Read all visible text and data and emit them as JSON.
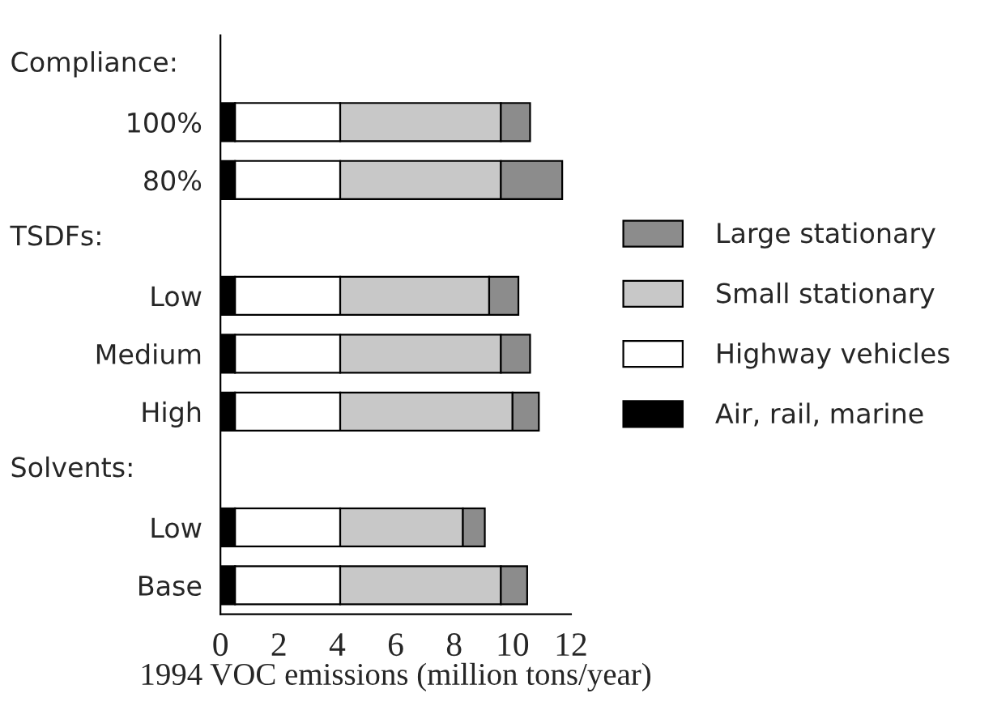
{
  "chart_data": {
    "type": "bar",
    "orientation": "horizontal",
    "stacked": true,
    "categories": [
      null,
      "100%",
      "80%",
      null,
      "Low",
      "Medium",
      "High",
      null,
      "Low",
      "Base"
    ],
    "annotations": [
      "Compliance:",
      "TSDFs:",
      "Solvents:"
    ],
    "series": [
      {
        "name": "Air, rail, marine",
        "color": "#000000",
        "values": [
          null,
          0.5,
          0.5,
          null,
          0.5,
          0.5,
          0.5,
          null,
          0.5,
          0.5
        ]
      },
      {
        "name": "Highway vehicles",
        "color": "#ffffff",
        "values": [
          null,
          3.6,
          3.6,
          null,
          3.6,
          3.6,
          3.6,
          null,
          3.6,
          3.6
        ]
      },
      {
        "name": "Small stationary",
        "color": "#c8c8c8",
        "values": [
          null,
          5.5,
          5.5,
          null,
          5.1,
          5.5,
          5.9,
          null,
          4.2,
          5.5
        ]
      },
      {
        "name": "Large stationary",
        "color": "#8c8c8c",
        "values": [
          null,
          1.0,
          2.1,
          null,
          1.0,
          1.0,
          0.9,
          null,
          0.75,
          0.9
        ]
      }
    ],
    "xlabel": "1994 VOC emissions (million tons/year)",
    "xlim": [
      0,
      12
    ],
    "xticks": [
      0,
      2,
      4,
      6,
      8,
      10,
      12
    ],
    "legend": "right",
    "grid": false
  }
}
